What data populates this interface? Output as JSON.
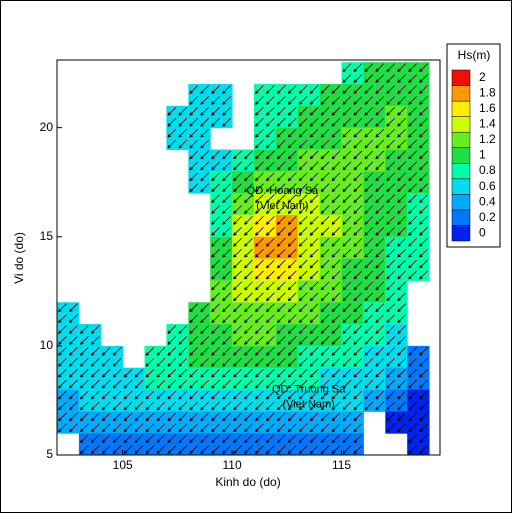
{
  "chart_data": {
    "type": "heatmap",
    "x_label": "Kinh do (do)",
    "y_label": "Vi do (do)",
    "xlim": [
      102,
      119.5
    ],
    "ylim": [
      5,
      23.1
    ],
    "xticks": [
      105,
      110,
      115
    ],
    "yticks": [
      5,
      10,
      15,
      20
    ],
    "x": [
      102.5,
      103.5,
      104.5,
      105.5,
      106.5,
      107.5,
      108.5,
      109.5,
      110.5,
      111.5,
      112.5,
      113.5,
      114.5,
      115.5,
      116.5,
      117.5,
      118.5
    ],
    "y": [
      22.5,
      21.5,
      20.5,
      19.5,
      18.5,
      17.5,
      16.5,
      15.5,
      14.5,
      13.5,
      12.5,
      11.5,
      10.5,
      9.5,
      8.5,
      7.5,
      6.5,
      5.5
    ],
    "z": [
      [
        null,
        null,
        null,
        null,
        null,
        null,
        null,
        null,
        null,
        null,
        null,
        null,
        null,
        0.9,
        1.0,
        1.0,
        1.0
      ],
      [
        null,
        null,
        null,
        null,
        null,
        null,
        0.6,
        0.7,
        null,
        0.8,
        0.8,
        0.9,
        1.0,
        1.0,
        1.1,
        1.1,
        1.1
      ],
      [
        null,
        null,
        null,
        null,
        null,
        0.6,
        0.6,
        0.6,
        null,
        0.8,
        0.9,
        1.0,
        1.0,
        1.1,
        1.1,
        1.2,
        1.1
      ],
      [
        null,
        null,
        null,
        null,
        null,
        0.6,
        0.7,
        null,
        null,
        0.9,
        1.0,
        1.1,
        1.1,
        1.2,
        1.2,
        1.2,
        1.1
      ],
      [
        null,
        null,
        null,
        null,
        null,
        null,
        0.6,
        0.7,
        0.8,
        1.0,
        1.1,
        1.2,
        1.3,
        1.3,
        1.2,
        1.1,
        1.0
      ],
      [
        null,
        null,
        null,
        null,
        null,
        null,
        0.6,
        0.8,
        1.0,
        1.2,
        1.3,
        1.3,
        1.3,
        1.2,
        1.1,
        1.0,
        1.0
      ],
      [
        null,
        null,
        null,
        null,
        null,
        null,
        null,
        0.8,
        1.2,
        1.4,
        1.5,
        1.4,
        1.3,
        1.2,
        1.1,
        1.0,
        0.9
      ],
      [
        null,
        null,
        null,
        null,
        null,
        null,
        null,
        0.8,
        1.4,
        1.7,
        1.8,
        1.5,
        1.4,
        1.2,
        1.1,
        1.0,
        0.9
      ],
      [
        null,
        null,
        null,
        null,
        null,
        null,
        null,
        1.0,
        1.5,
        1.9,
        1.8,
        1.5,
        1.3,
        1.2,
        1.0,
        0.9,
        0.9
      ],
      [
        null,
        null,
        null,
        null,
        null,
        null,
        null,
        1.0,
        1.5,
        1.7,
        1.6,
        1.4,
        1.3,
        1.1,
        1.0,
        0.9,
        0.8
      ],
      [
        null,
        null,
        null,
        null,
        null,
        null,
        null,
        1.2,
        1.4,
        1.5,
        1.4,
        1.3,
        1.2,
        1.1,
        1.0,
        0.9,
        null
      ],
      [
        0.6,
        null,
        null,
        null,
        null,
        null,
        1.0,
        1.2,
        1.3,
        1.3,
        1.3,
        1.2,
        1.1,
        1.0,
        0.9,
        0.9,
        null
      ],
      [
        0.7,
        0.7,
        null,
        null,
        null,
        0.9,
        1.0,
        1.1,
        1.2,
        1.2,
        1.1,
        1.1,
        1.0,
        0.9,
        0.8,
        0.7,
        null
      ],
      [
        0.6,
        0.7,
        0.7,
        null,
        0.8,
        0.9,
        1.0,
        1.0,
        1.0,
        1.0,
        1.0,
        0.9,
        0.9,
        0.8,
        0.7,
        0.6,
        0.3
      ],
      [
        0.6,
        0.6,
        0.7,
        0.7,
        0.8,
        0.8,
        0.8,
        0.8,
        0.8,
        0.8,
        0.8,
        0.8,
        0.7,
        0.7,
        0.6,
        0.5,
        0.2
      ],
      [
        0.5,
        0.6,
        0.6,
        0.6,
        0.6,
        0.7,
        0.7,
        0.7,
        0.7,
        0.7,
        0.7,
        0.7,
        0.6,
        0.6,
        0.4,
        0.2,
        0.1
      ],
      [
        0.4,
        0.5,
        0.5,
        0.5,
        0.4,
        0.4,
        0.4,
        0.5,
        0.5,
        0.5,
        0.5,
        0.5,
        0.5,
        0.4,
        null,
        0.1,
        0.1
      ],
      [
        null,
        0.3,
        0.3,
        0.3,
        0.3,
        0.3,
        0.3,
        0.3,
        0.3,
        0.3,
        0.3,
        0.3,
        0.3,
        0.3,
        null,
        null,
        0.1
      ]
    ],
    "colorbar": {
      "title": "Hs(m)",
      "levels": [
        0,
        0.2,
        0.4,
        0.6,
        0.8,
        1,
        1.2,
        1.4,
        1.6,
        1.8,
        2
      ],
      "colors": [
        "#0022ee",
        "#0077ff",
        "#00aaff",
        "#00ddee",
        "#00ffaa",
        "#22dd44",
        "#66ee22",
        "#ccff00",
        "#ffee00",
        "#ff9900",
        "#ee1100"
      ]
    },
    "annotations": [
      "QD. Hoang Sa",
      "(Viet Nam)",
      "QD. Truong Sa",
      "(Viet Nam)"
    ]
  }
}
